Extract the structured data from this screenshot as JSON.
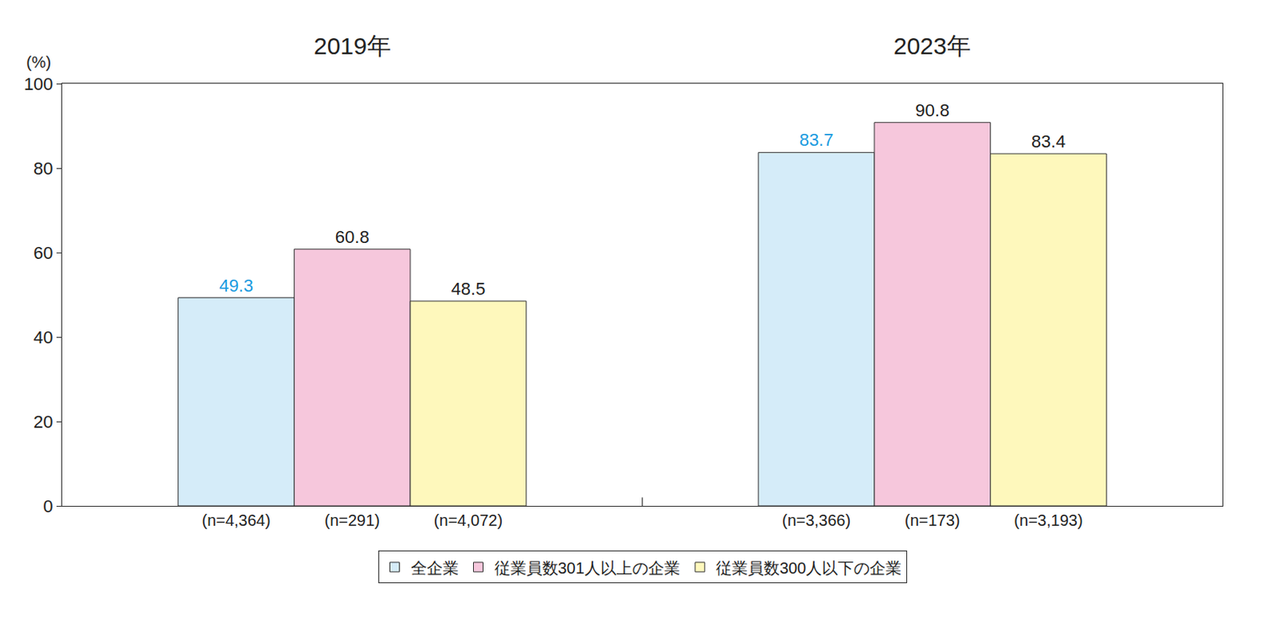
{
  "chart_data": {
    "type": "bar",
    "groups": [
      "2019年",
      "2023年"
    ],
    "y_label": "(%)",
    "categories": [
      "(n=4,364)",
      "(n=291)",
      "(n=4,072)",
      "(n=3,366)",
      "(n=173)",
      "(n=3,193)"
    ],
    "series": [
      {
        "name": "全企業",
        "color": "#d5ecf9",
        "values": [
          49.3,
          null,
          null,
          83.7,
          null,
          null
        ]
      },
      {
        "name": "従業員数301人以上の企業",
        "color": "#f6c7dc",
        "values": [
          null,
          60.8,
          null,
          null,
          90.8,
          null
        ]
      },
      {
        "name": "従業員数300人以下の企業",
        "color": "#fef8bc",
        "values": [
          null,
          null,
          48.5,
          null,
          null,
          83.4
        ]
      }
    ],
    "ylim": [
      0,
      100
    ],
    "yticks": [
      0,
      20,
      40,
      60,
      80,
      100
    ],
    "grid": false,
    "data_labels": true,
    "legend": "bottom"
  }
}
